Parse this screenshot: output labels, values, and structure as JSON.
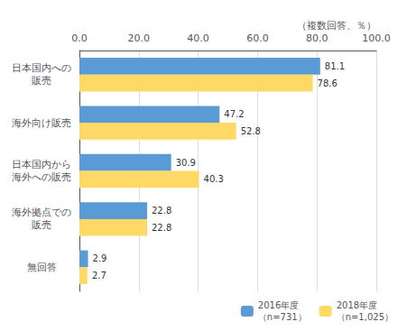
{
  "chart_data": {
    "type": "bar",
    "orientation": "horizontal",
    "x_label": "（複数回答、％）",
    "categories": [
      "日本国内への\n販売",
      "海外向け販売",
      "日本国内から\n海外への販売",
      "海外拠点での\n販売",
      "無回答"
    ],
    "series": [
      {
        "name": "2016年度\n（n=731）",
        "color": "#5B9BD5",
        "values": [
          81.1,
          47.2,
          30.9,
          22.8,
          2.9
        ]
      },
      {
        "name": "2018年度\n（n=1,025）",
        "color": "#FFD966",
        "values": [
          78.6,
          52.8,
          40.3,
          22.8,
          2.7
        ]
      }
    ],
    "xlim": [
      0,
      100
    ],
    "xticks": [
      {
        "value": 0,
        "label": "0.0"
      },
      {
        "value": 20,
        "label": "20.0"
      },
      {
        "value": 40,
        "label": "40.0"
      },
      {
        "value": 60,
        "label": "60.0"
      },
      {
        "value": 80,
        "label": "80.0"
      },
      {
        "value": 100,
        "label": "100.0"
      }
    ],
    "grid": true,
    "legend": "lower right",
    "data_labels": true
  }
}
